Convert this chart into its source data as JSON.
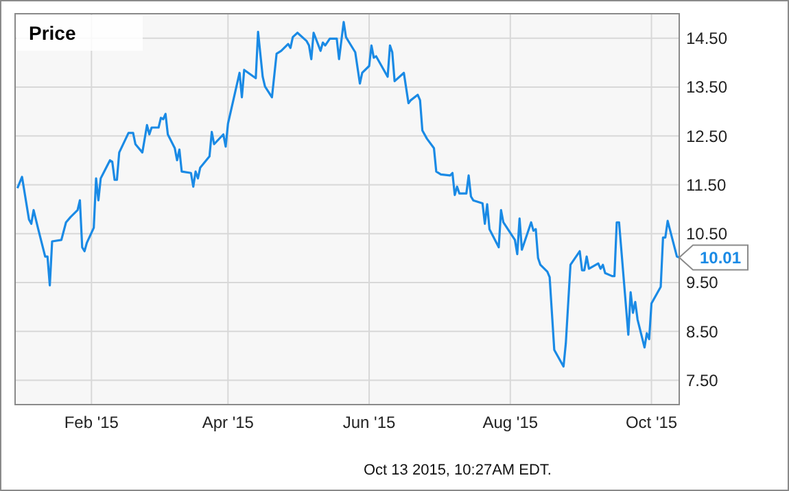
{
  "chart_data": {
    "type": "line",
    "title": "Price",
    "x": [
      "2014-12-31",
      "2015-01-02",
      "2015-01-05",
      "2015-01-06",
      "2015-01-07",
      "2015-01-09",
      "2015-01-12",
      "2015-01-13",
      "2015-01-14",
      "2015-01-15",
      "2015-01-19",
      "2015-01-21",
      "2015-01-23",
      "2015-01-26",
      "2015-01-27",
      "2015-01-28",
      "2015-01-29",
      "2015-01-30",
      "2015-02-02",
      "2015-02-03",
      "2015-02-04",
      "2015-02-05",
      "2015-02-09",
      "2015-02-10",
      "2015-02-11",
      "2015-02-12",
      "2015-02-13",
      "2015-02-17",
      "2015-02-19",
      "2015-02-20",
      "2015-02-23",
      "2015-02-25",
      "2015-02-26",
      "2015-02-27",
      "2015-03-02",
      "2015-03-03",
      "2015-03-04",
      "2015-03-05",
      "2015-03-06",
      "2015-03-09",
      "2015-03-10",
      "2015-03-11",
      "2015-03-12",
      "2015-03-16",
      "2015-03-17",
      "2015-03-18",
      "2015-03-19",
      "2015-03-20",
      "2015-03-24",
      "2015-03-25",
      "2015-03-26",
      "2015-03-30",
      "2015-03-31",
      "2015-04-01",
      "2015-04-06",
      "2015-04-07",
      "2015-04-08",
      "2015-04-13",
      "2015-04-14",
      "2015-04-16",
      "2015-04-17",
      "2015-04-20",
      "2015-04-22",
      "2015-04-24",
      "2015-04-27",
      "2015-04-28",
      "2015-04-29",
      "2015-05-01",
      "2015-05-05",
      "2015-05-06",
      "2015-05-07",
      "2015-05-08",
      "2015-05-11",
      "2015-05-12",
      "2015-05-13",
      "2015-05-15",
      "2015-05-18",
      "2015-05-19",
      "2015-05-21",
      "2015-05-22",
      "2015-05-26",
      "2015-05-28",
      "2015-05-29",
      "2015-06-01",
      "2015-06-02",
      "2015-06-03",
      "2015-06-04",
      "2015-06-09",
      "2015-06-10",
      "2015-06-11",
      "2015-06-12",
      "2015-06-16",
      "2015-06-18",
      "2015-06-19",
      "2015-06-22",
      "2015-06-23",
      "2015-06-24",
      "2015-06-26",
      "2015-06-29",
      "2015-06-30",
      "2015-07-02",
      "2015-07-06",
      "2015-07-07",
      "2015-07-08",
      "2015-07-09",
      "2015-07-10",
      "2015-07-13",
      "2015-07-14",
      "2015-07-15",
      "2015-07-16",
      "2015-07-20",
      "2015-07-21",
      "2015-07-22",
      "2015-07-23",
      "2015-07-27",
      "2015-07-28",
      "2015-07-29",
      "2015-08-03",
      "2015-08-04",
      "2015-08-05",
      "2015-08-06",
      "2015-08-10",
      "2015-08-11",
      "2015-08-12",
      "2015-08-13",
      "2015-08-14",
      "2015-08-17",
      "2015-08-18",
      "2015-08-20",
      "2015-08-24",
      "2015-08-25",
      "2015-08-27",
      "2015-08-31",
      "2015-09-01",
      "2015-09-02",
      "2015-09-03",
      "2015-09-04",
      "2015-09-08",
      "2015-09-09",
      "2015-09-10",
      "2015-09-11",
      "2015-09-14",
      "2015-09-15",
      "2015-09-16",
      "2015-09-17",
      "2015-09-21",
      "2015-09-22",
      "2015-09-23",
      "2015-09-24",
      "2015-09-25",
      "2015-09-28",
      "2015-09-29",
      "2015-09-30",
      "2015-10-01",
      "2015-10-05",
      "2015-10-06",
      "2015-10-07",
      "2015-10-08",
      "2015-10-12",
      "2015-10-13"
    ],
    "series": [
      {
        "color": "#1a8ae5",
        "values": [
          11.43,
          11.66,
          10.79,
          10.7,
          10.98,
          10.59,
          10.03,
          10.03,
          9.44,
          10.34,
          10.37,
          10.73,
          10.84,
          10.98,
          11.18,
          10.22,
          10.14,
          10.31,
          10.62,
          11.63,
          11.18,
          11.63,
          12.0,
          11.97,
          11.6,
          11.6,
          12.16,
          12.56,
          12.56,
          12.33,
          12.16,
          12.72,
          12.53,
          12.67,
          12.67,
          12.87,
          12.84,
          12.95,
          12.53,
          12.25,
          12.0,
          12.22,
          11.77,
          11.74,
          11.46,
          11.77,
          11.63,
          11.85,
          12.08,
          12.58,
          12.33,
          12.53,
          12.28,
          12.75,
          13.79,
          13.29,
          13.85,
          13.68,
          14.63,
          13.71,
          13.51,
          13.29,
          14.18,
          14.24,
          14.38,
          14.3,
          14.52,
          14.61,
          14.44,
          14.35,
          14.07,
          14.61,
          14.24,
          14.41,
          14.35,
          14.49,
          14.49,
          14.07,
          14.83,
          14.52,
          14.21,
          13.57,
          13.79,
          13.93,
          14.35,
          14.1,
          14.13,
          13.71,
          14.35,
          14.21,
          13.62,
          13.79,
          13.17,
          13.23,
          13.34,
          13.23,
          12.61,
          12.44,
          12.25,
          11.77,
          11.71,
          11.69,
          11.74,
          11.29,
          11.46,
          11.32,
          11.32,
          11.69,
          11.26,
          11.18,
          11.12,
          10.7,
          11.1,
          10.59,
          10.22,
          10.98,
          10.73,
          10.37,
          10.08,
          10.81,
          10.17,
          10.73,
          10.56,
          10.59,
          10.0,
          9.86,
          9.72,
          9.61,
          8.12,
          7.78,
          8.26,
          9.86,
          10.14,
          9.75,
          9.75,
          10.03,
          9.78,
          9.89,
          9.78,
          9.86,
          9.69,
          9.63,
          9.63,
          10.73,
          10.73,
          8.43,
          9.3,
          8.88,
          9.1,
          8.74,
          8.17,
          8.46,
          8.34,
          9.07,
          9.41,
          10.42,
          10.42,
          10.76,
          10.03,
          10.01
        ]
      }
    ],
    "xlim": [
      "2014-12-30",
      "2015-10-13"
    ],
    "xticks": [
      {
        "value": "2015-02-01",
        "label": "Feb '15"
      },
      {
        "value": "2015-04-01",
        "label": "Apr '15"
      },
      {
        "value": "2015-06-01",
        "label": "Jun '15"
      },
      {
        "value": "2015-08-01",
        "label": "Aug '15"
      },
      {
        "value": "2015-10-01",
        "label": "Oct '15"
      }
    ],
    "ylim": [
      7,
      15
    ],
    "yticks": [
      {
        "value": 7.5,
        "label": "7.50"
      },
      {
        "value": 8.5,
        "label": "8.50"
      },
      {
        "value": 9.5,
        "label": "9.50"
      },
      {
        "value": 10.5,
        "label": "10.50"
      },
      {
        "value": 11.5,
        "label": "11.50"
      },
      {
        "value": 12.5,
        "label": "12.50"
      },
      {
        "value": 13.5,
        "label": "13.50"
      },
      {
        "value": 14.5,
        "label": "14.50"
      }
    ],
    "grid": true,
    "marker": "none",
    "line_style": "solid",
    "annotations": [
      {
        "text": "10.01",
        "x": "2015-10-13",
        "y": 10.01
      },
      "Oct 13 2015, 10:27AM EDT."
    ]
  }
}
